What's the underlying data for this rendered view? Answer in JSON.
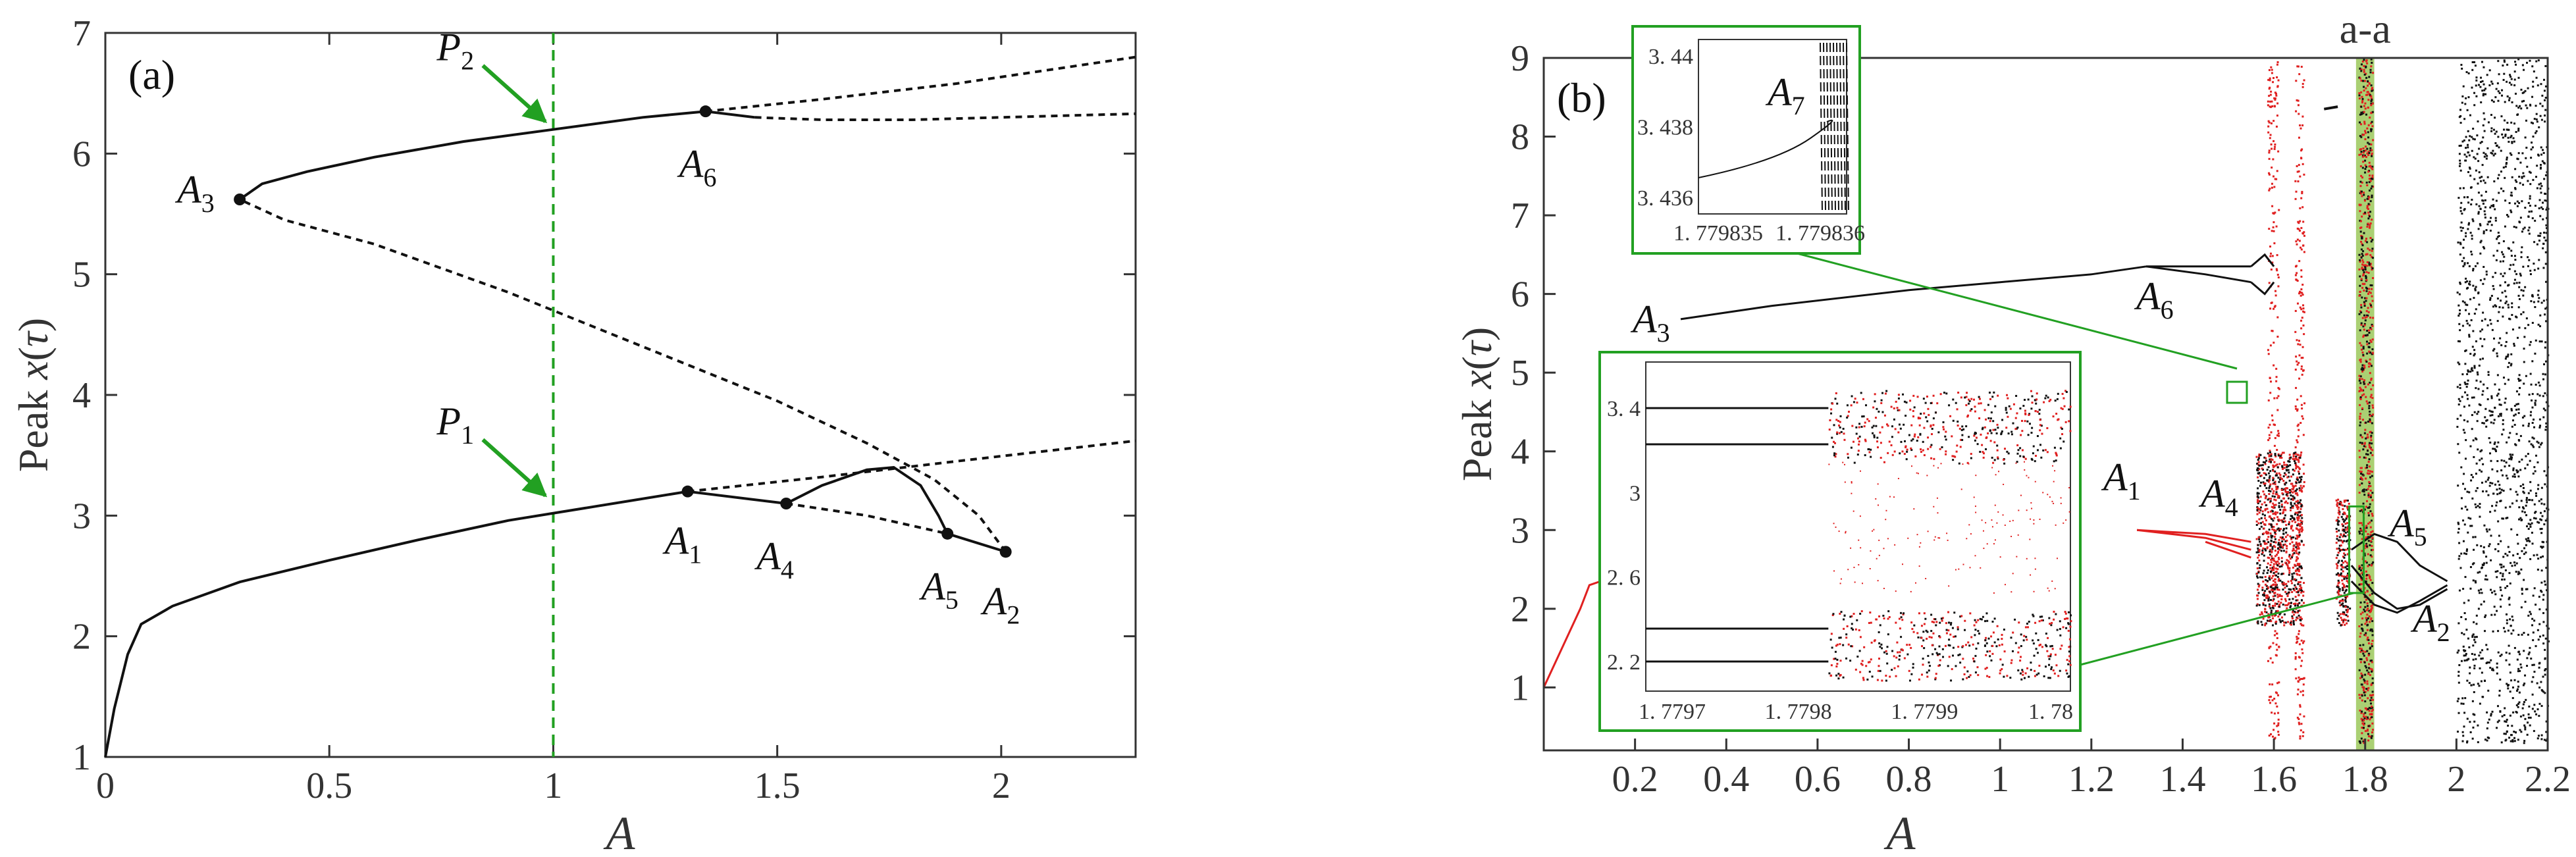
{
  "chart_data": [
    {
      "type": "line",
      "panel_label": "(a)",
      "xlabel": "A",
      "ylabel": "Peak x(τ)",
      "xlim": [
        0,
        2.3
      ],
      "ylim": [
        1,
        7
      ],
      "xticks": [
        "0",
        "0.5",
        "1",
        "1.5",
        "2"
      ],
      "yticks": [
        "1",
        "2",
        "3",
        "4",
        "5",
        "6",
        "7"
      ],
      "vline": {
        "x": 1,
        "color": "#22a022",
        "style": "dashed"
      },
      "arrows": [
        {
          "label": "P",
          "sub": "2",
          "target": [
            1.0,
            6.2
          ]
        },
        {
          "label": "P",
          "sub": "1",
          "target": [
            1.0,
            3.1
          ]
        }
      ],
      "series": [
        {
          "style": "solid",
          "points": [
            [
              0,
              1.0
            ],
            [
              0.02,
              1.4
            ],
            [
              0.05,
              1.85
            ],
            [
              0.08,
              2.1
            ],
            [
              0.15,
              2.25
            ],
            [
              0.3,
              2.45
            ],
            [
              0.5,
              2.63
            ],
            [
              0.7,
              2.8
            ],
            [
              0.9,
              2.96
            ],
            [
              1.1,
              3.08
            ],
            [
              1.3,
              3.2
            ]
          ]
        },
        {
          "style": "solid",
          "points": [
            [
              1.3,
              3.2
            ],
            [
              1.52,
              3.1
            ]
          ]
        },
        {
          "style": "solid",
          "points": [
            [
              1.52,
              3.1
            ],
            [
              1.6,
              3.25
            ],
            [
              1.7,
              3.38
            ],
            [
              1.76,
              3.4
            ],
            [
              1.82,
              3.25
            ],
            [
              1.86,
              3.0
            ],
            [
              1.88,
              2.85
            ]
          ]
        },
        {
          "style": "solid",
          "points": [
            [
              1.88,
              2.85
            ],
            [
              2.01,
              2.7
            ]
          ]
        },
        {
          "style": "dashed",
          "points": [
            [
              1.3,
              3.2
            ],
            [
              1.6,
              3.32
            ],
            [
              1.9,
              3.45
            ],
            [
              2.3,
              3.62
            ]
          ]
        },
        {
          "style": "dashed",
          "points": [
            [
              1.52,
              3.1
            ],
            [
              1.7,
              3.0
            ],
            [
              1.88,
              2.85
            ]
          ]
        },
        {
          "style": "dashed",
          "points": [
            [
              2.01,
              2.7
            ],
            [
              1.95,
              3.0
            ],
            [
              1.85,
              3.3
            ],
            [
              1.7,
              3.6
            ],
            [
              1.5,
              3.95
            ],
            [
              1.2,
              4.4
            ],
            [
              0.9,
              4.85
            ],
            [
              0.6,
              5.25
            ],
            [
              0.4,
              5.45
            ],
            [
              0.3,
              5.62
            ]
          ]
        },
        {
          "style": "solid",
          "points": [
            [
              0.3,
              5.62
            ],
            [
              0.35,
              5.75
            ],
            [
              0.45,
              5.85
            ],
            [
              0.6,
              5.97
            ],
            [
              0.8,
              6.1
            ],
            [
              1.0,
              6.2
            ],
            [
              1.2,
              6.3
            ],
            [
              1.34,
              6.35
            ]
          ]
        },
        {
          "style": "solid",
          "points": [
            [
              1.34,
              6.35
            ],
            [
              1.45,
              6.3
            ]
          ]
        },
        {
          "style": "dashed",
          "points": [
            [
              1.45,
              6.3
            ],
            [
              1.6,
              6.28
            ],
            [
              1.8,
              6.28
            ],
            [
              2.0,
              6.3
            ],
            [
              2.3,
              6.33
            ]
          ]
        },
        {
          "style": "dashed",
          "points": [
            [
              1.34,
              6.35
            ],
            [
              1.6,
              6.45
            ],
            [
              1.9,
              6.58
            ],
            [
              2.3,
              6.8
            ]
          ]
        }
      ],
      "points": [
        {
          "name": "A",
          "sub": "1",
          "x": 1.3,
          "y": 3.2
        },
        {
          "name": "A",
          "sub": "2",
          "x": 2.01,
          "y": 2.7
        },
        {
          "name": "A",
          "sub": "3",
          "x": 0.3,
          "y": 5.62
        },
        {
          "name": "A",
          "sub": "4",
          "x": 1.52,
          "y": 3.1
        },
        {
          "name": "A",
          "sub": "5",
          "x": 1.88,
          "y": 2.85
        },
        {
          "name": "A",
          "sub": "6",
          "x": 1.34,
          "y": 6.35
        }
      ]
    },
    {
      "type": "scatter",
      "panel_label": "(b)",
      "top_label": "a-a",
      "xlabel": "A",
      "ylabel": "Peak x(τ)",
      "xlim": [
        0,
        2.2
      ],
      "ylim": [
        0.2,
        9
      ],
      "xticks": [
        "0.2",
        "0.4",
        "0.6",
        "0.8",
        "1",
        "1.2",
        "1.4",
        "1.6",
        "1.8",
        "2",
        "2.2"
      ],
      "yticks": [
        "1",
        "2",
        "3",
        "4",
        "5",
        "6",
        "7",
        "8",
        "9"
      ],
      "highlight_band": {
        "x": [
          1.78,
          1.82
        ],
        "color": "#9bc85a"
      },
      "labels": [
        {
          "name": "A",
          "sub": "1"
        },
        {
          "name": "A",
          "sub": "2"
        },
        {
          "name": "A",
          "sub": "3"
        },
        {
          "name": "A",
          "sub": "4"
        },
        {
          "name": "A",
          "sub": "5"
        },
        {
          "name": "A",
          "sub": "6"
        },
        {
          "name": "A",
          "sub": "7"
        }
      ],
      "insets": [
        {
          "xticks": [
            "1.779835",
            "1.779836"
          ],
          "yticks": [
            "3.44",
            "3.438",
            "3.436"
          ],
          "xtick_display": [
            "1. 779835",
            "1. 779836"
          ],
          "ytick_display": [
            "3. 44",
            "3. 438",
            "3. 436"
          ]
        },
        {
          "xticks": [
            "1.7797",
            "1.7798",
            "1.7799",
            "1.78"
          ],
          "yticks": [
            "3.4",
            "3",
            "2.6",
            "2.2"
          ],
          "xtick_display": [
            "1. 7797",
            "1. 7798",
            "1. 7799",
            "1. 78"
          ],
          "ytick_display": [
            "3. 4",
            "3",
            "2. 6",
            "2. 2"
          ]
        }
      ]
    }
  ],
  "colors": {
    "axis": "#333333",
    "guide": "#22a022",
    "band": "#9bc85a",
    "red": "#e02020",
    "curve": "#111111"
  }
}
